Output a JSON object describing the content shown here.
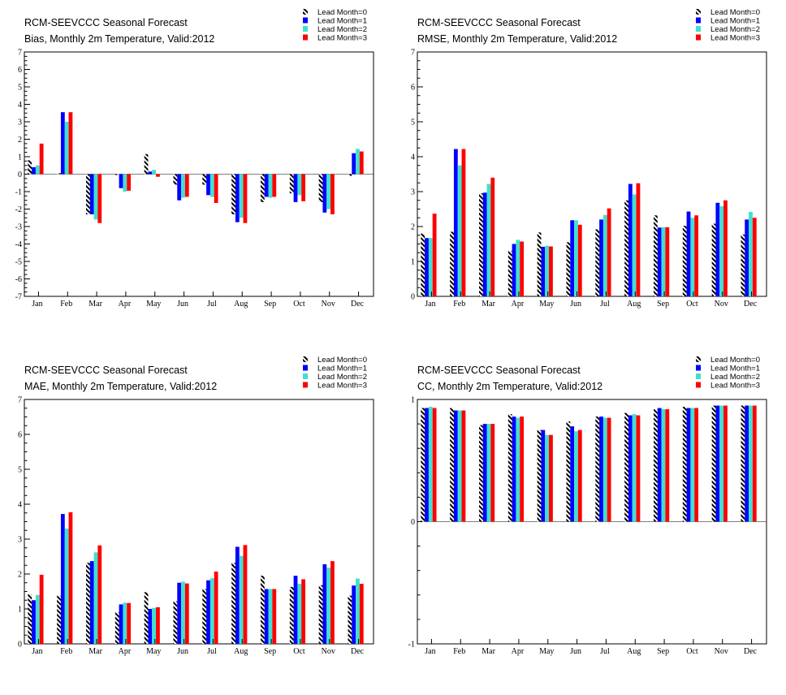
{
  "colors": {
    "lead0_stripe": "#000000",
    "lead1": "#0000ff",
    "lead2": "#40e0d0",
    "lead3": "#ff0000",
    "axis": "#000000"
  },
  "chart_data": [
    {
      "type": "bar",
      "title": "RCM-SEEVCCC Seasonal Forecast",
      "subtitle": "Bias, Monthly 2m Temperature, Valid:2012",
      "xlabel": "",
      "ylabel": "",
      "ylim": [
        -7,
        7
      ],
      "yticks": [
        -7,
        -6,
        -5,
        -4,
        -3,
        -2,
        -1,
        0,
        1,
        2,
        3,
        4,
        5,
        6,
        7
      ],
      "ytick_labels": [
        "-7",
        "-6",
        "-5",
        "-4",
        "-3",
        "-2",
        "-1",
        "0",
        "1",
        "2",
        "3",
        "4",
        "5",
        "6",
        "7"
      ],
      "legend_position": "top-right",
      "categories": [
        "Jan",
        "Feb",
        "Mar",
        "Apr",
        "May",
        "Jun",
        "Jul",
        "Aug",
        "Sep",
        "Oct",
        "Nov",
        "Dec"
      ],
      "series": [
        {
          "name": "Lead Month=0",
          "values": [
            0.8,
            0.05,
            -2.3,
            -0.05,
            1.15,
            -0.6,
            -0.6,
            -2.3,
            -1.6,
            -1.1,
            -1.6,
            -0.1
          ]
        },
        {
          "name": "Lead Month=1",
          "values": [
            0.4,
            3.55,
            -2.3,
            -0.8,
            0.15,
            -1.5,
            -1.2,
            -2.75,
            -1.3,
            -1.6,
            -2.2,
            1.2
          ]
        },
        {
          "name": "Lead Month=2",
          "values": [
            0.5,
            3.0,
            -2.6,
            -1.0,
            0.25,
            -1.35,
            -1.3,
            -2.5,
            -1.35,
            -1.2,
            -2.0,
            1.45
          ]
        },
        {
          "name": "Lead Month=3",
          "values": [
            1.75,
            3.55,
            -2.8,
            -0.95,
            -0.15,
            -1.3,
            -1.65,
            -2.8,
            -1.3,
            -1.55,
            -2.3,
            1.3
          ]
        }
      ]
    },
    {
      "type": "bar",
      "title": "RCM-SEEVCCC Seasonal Forecast",
      "subtitle": "RMSE, Monthly 2m Temperature, Valid:2012",
      "xlabel": "",
      "ylabel": "",
      "ylim": [
        0,
        7
      ],
      "yticks": [
        0,
        1,
        2,
        3,
        4,
        5,
        6,
        7
      ],
      "ytick_labels": [
        "0",
        "1",
        "2",
        "3",
        "4",
        "5",
        "6",
        "7"
      ],
      "legend_position": "top-right",
      "categories": [
        "Jan",
        "Feb",
        "Mar",
        "Apr",
        "May",
        "Jun",
        "Jul",
        "Aug",
        "Sep",
        "Oct",
        "Nov",
        "Dec"
      ],
      "series": [
        {
          "name": "Lead Month=0",
          "values": [
            1.8,
            1.85,
            2.95,
            1.3,
            1.83,
            1.55,
            1.92,
            2.75,
            2.32,
            2.02,
            2.08,
            1.77
          ]
        },
        {
          "name": "Lead Month=1",
          "values": [
            1.67,
            4.22,
            2.97,
            1.5,
            1.42,
            2.18,
            2.2,
            3.22,
            1.97,
            2.43,
            2.68,
            2.2
          ]
        },
        {
          "name": "Lead Month=2",
          "values": [
            1.67,
            3.75,
            3.22,
            1.62,
            1.45,
            2.18,
            2.33,
            2.92,
            1.98,
            2.25,
            2.58,
            2.42
          ]
        },
        {
          "name": "Lead Month=3",
          "values": [
            2.37,
            4.22,
            3.4,
            1.57,
            1.43,
            2.05,
            2.52,
            3.24,
            1.98,
            2.32,
            2.75,
            2.25
          ]
        }
      ]
    },
    {
      "type": "bar",
      "title": "RCM-SEEVCCC Seasonal Forecast",
      "subtitle": "MAE, Monthly 2m Temperature, Valid:2012",
      "xlabel": "",
      "ylabel": "",
      "ylim": [
        0,
        7
      ],
      "yticks": [
        0,
        1,
        2,
        3,
        4,
        5,
        6,
        7
      ],
      "ytick_labels": [
        "0",
        "1",
        "2",
        "3",
        "4",
        "5",
        "6",
        "7"
      ],
      "legend_position": "top-right",
      "categories": [
        "Jan",
        "Feb",
        "Mar",
        "Apr",
        "May",
        "Jun",
        "Jul",
        "Aug",
        "Sep",
        "Oct",
        "Nov",
        "Dec"
      ],
      "series": [
        {
          "name": "Lead Month=0",
          "values": [
            1.42,
            1.38,
            2.32,
            0.9,
            1.48,
            1.22,
            1.57,
            2.32,
            1.95,
            1.63,
            1.68,
            1.38
          ]
        },
        {
          "name": "Lead Month=1",
          "values": [
            1.25,
            3.72,
            2.37,
            1.13,
            1.0,
            1.75,
            1.82,
            2.78,
            1.57,
            1.95,
            2.28,
            1.67
          ]
        },
        {
          "name": "Lead Month=2",
          "values": [
            1.4,
            3.3,
            2.62,
            1.18,
            1.03,
            1.78,
            1.88,
            2.52,
            1.57,
            1.72,
            2.18,
            1.87
          ]
        },
        {
          "name": "Lead Month=3",
          "values": [
            1.98,
            3.77,
            2.82,
            1.17,
            1.05,
            1.73,
            2.07,
            2.83,
            1.57,
            1.85,
            2.37,
            1.72
          ]
        }
      ]
    },
    {
      "type": "bar",
      "title": "RCM-SEEVCCC Seasonal Forecast",
      "subtitle": "CC, Monthly 2m Temperature, Valid:2012",
      "xlabel": "",
      "ylabel": "",
      "ylim": [
        -1,
        1
      ],
      "yticks": [
        -1,
        0,
        1
      ],
      "ytick_labels": [
        "-1",
        "0",
        "1"
      ],
      "legend_position": "top-right",
      "categories": [
        "Jan",
        "Feb",
        "Mar",
        "Apr",
        "May",
        "Jun",
        "Jul",
        "Aug",
        "Sep",
        "Oct",
        "Nov",
        "Dec"
      ],
      "series": [
        {
          "name": "Lead Month=0",
          "values": [
            0.93,
            0.93,
            0.79,
            0.88,
            0.75,
            0.82,
            0.86,
            0.89,
            0.92,
            0.94,
            0.95,
            0.95
          ]
        },
        {
          "name": "Lead Month=1",
          "values": [
            0.93,
            0.91,
            0.8,
            0.86,
            0.75,
            0.78,
            0.86,
            0.87,
            0.93,
            0.93,
            0.95,
            0.95
          ]
        },
        {
          "name": "Lead Month=2",
          "values": [
            0.94,
            0.91,
            0.8,
            0.85,
            0.71,
            0.74,
            0.85,
            0.88,
            0.92,
            0.93,
            0.95,
            0.95
          ]
        },
        {
          "name": "Lead Month=3",
          "values": [
            0.93,
            0.91,
            0.8,
            0.86,
            0.71,
            0.75,
            0.85,
            0.87,
            0.92,
            0.93,
            0.95,
            0.95
          ]
        }
      ]
    }
  ]
}
